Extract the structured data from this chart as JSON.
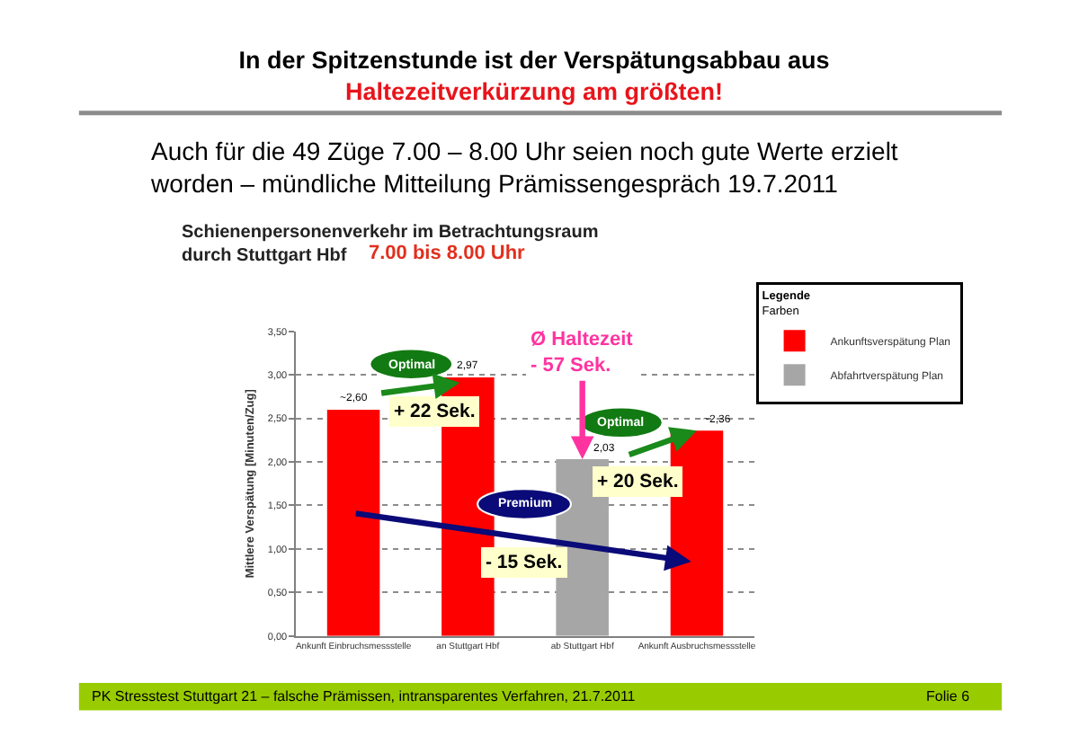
{
  "chart_data": {
    "type": "bar",
    "title": "In der Spitzenstunde ist der Verspätungsabbau aus\nHaltezeitverkürzung am größten!",
    "subtitle": "Auch für die 49 Züge 7.00 – 8.00 Uhr seien noch gute Werte erzielt\nworden – mündliche Mitteilung Prämissengespräch 19.7.2011",
    "ylabel": "Mittlere Verspätung [Minuten/Zug]",
    "legend_title": "Legende\nFarben",
    "categories": [
      "Ankunft Einbruchsmessstelle",
      "an Stuttgart Hbf",
      "ab Stuttgart Hbf",
      "Ankunft Ausbruchsmessstelle"
    ],
    "series": [
      {
        "name": "Ankunftsverspätung Plan",
        "color": "#ff0000",
        "values": [
          2.6,
          2.97,
          null,
          2.36
        ],
        "value_labels": [
          "~2,60",
          "2,97",
          null,
          "~2,36"
        ]
      },
      {
        "name": "Abfahrtverspätung Plan",
        "color": "#a6a6a6",
        "values": [
          null,
          null,
          2.03,
          null
        ],
        "value_labels": [
          null,
          null,
          "2,03",
          null
        ]
      }
    ],
    "ylim": [
      0,
      3.5
    ],
    "yticks": [
      {
        "value": 0,
        "label": "0,00"
      },
      {
        "value": 0.5,
        "label": "0,50"
      },
      {
        "value": 1,
        "label": "1,00"
      },
      {
        "value": 1.5,
        "label": "1,50"
      },
      {
        "value": 2,
        "label": "2,00"
      },
      {
        "value": 2.5,
        "label": "2,50"
      },
      {
        "value": 3,
        "label": "3,00"
      },
      {
        "value": 3.5,
        "label": "3,50"
      }
    ],
    "grid": "y",
    "legend": "top right",
    "annotations": [
      "Schienenpersonenverkehr im Betrachtungsraum\ndurch Stuttgart Hbf",
      "7.00 bis 8.00 Uhr",
      "Optimal",
      "+ 22 Sek.",
      {
        "text": "Ø Haltezeit\n- 57 Sek.",
        "x": "ab Stuttgart Hbf",
        "y": 2.03
      },
      "Optimal",
      {
        "text": "+ 20 Sek.",
        "x": "Ankunft Ausbruchsmessstelle",
        "y": 2.36
      },
      "Premium",
      "- 15 Sek.",
      "PK Stresstest Stuttgart 21 – falsche Prämissen, intransparentes Verfahren, 21.7.2011",
      "Folie 6"
    ]
  }
}
